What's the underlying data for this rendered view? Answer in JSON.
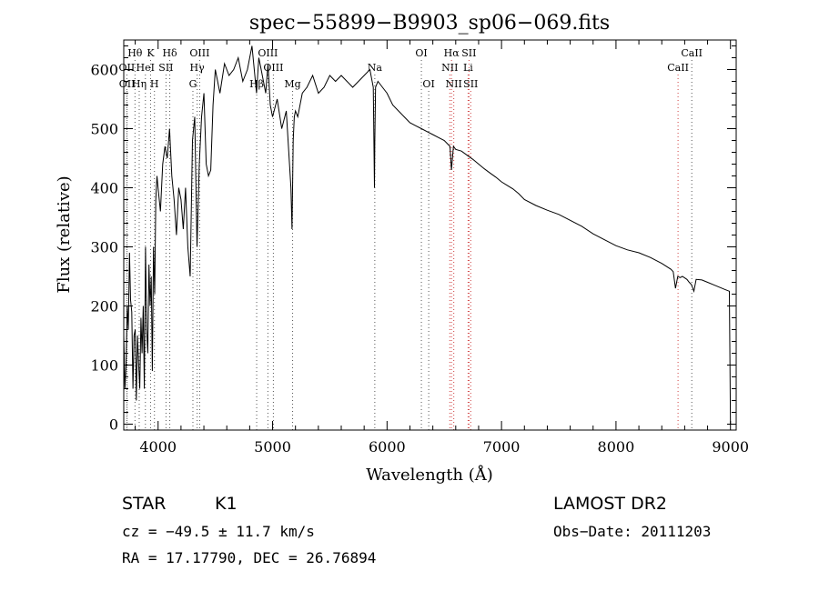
{
  "chart_data": {
    "type": "line",
    "title": "spec−55899−B9903_sp06−069.fits",
    "xlabel": "Wavelength (Å)",
    "ylabel": "Flux (relative)",
    "xlim": [
      3700,
      9050
    ],
    "ylim": [
      -10,
      650
    ],
    "xticks": [
      4000,
      5000,
      6000,
      7000,
      8000,
      9000
    ],
    "yticks": [
      0,
      100,
      200,
      300,
      400,
      500,
      600
    ],
    "grid": false,
    "series": [
      {
        "x": [
          3700,
          3710,
          3720,
          3730,
          3740,
          3750,
          3760,
          3770,
          3780,
          3790,
          3800,
          3810,
          3820,
          3830,
          3840,
          3850,
          3860,
          3870,
          3880,
          3890,
          3900,
          3910,
          3920,
          3930,
          3940,
          3950,
          3960,
          3970,
          3980,
          3990,
          4000,
          4020,
          4040,
          4060,
          4080,
          4100,
          4120,
          4140,
          4160,
          4180,
          4200,
          4220,
          4240,
          4260,
          4280,
          4300,
          4320,
          4340,
          4360,
          4380,
          4400,
          4420,
          4440,
          4460,
          4480,
          4500,
          4540,
          4580,
          4620,
          4660,
          4700,
          4740,
          4780,
          4820,
          4840,
          4860,
          4880,
          4900,
          4920,
          4940,
          4960,
          4980,
          5000,
          5040,
          5080,
          5120,
          5160,
          5170,
          5180,
          5190,
          5200,
          5220,
          5260,
          5300,
          5350,
          5400,
          5450,
          5500,
          5550,
          5600,
          5650,
          5700,
          5750,
          5800,
          5850,
          5880,
          5890,
          5893,
          5900,
          5920,
          5960,
          6000,
          6050,
          6100,
          6150,
          6200,
          6250,
          6300,
          6350,
          6400,
          6450,
          6500,
          6550,
          6563,
          6580,
          6600,
          6650,
          6700,
          6750,
          6800,
          6850,
          6900,
          6950,
          7000,
          7050,
          7100,
          7150,
          7200,
          7300,
          7400,
          7500,
          7600,
          7700,
          7800,
          7900,
          8000,
          8100,
          8200,
          8300,
          8400,
          8480,
          8500,
          8520,
          8540,
          8560,
          8580,
          8620,
          8640,
          8660,
          8680,
          8700,
          8750,
          8800,
          8850,
          8900,
          8950,
          8990,
          9000,
          9005
        ],
        "y": [
          150,
          60,
          100,
          200,
          160,
          290,
          210,
          190,
          60,
          150,
          160,
          40,
          150,
          100,
          60,
          180,
          120,
          200,
          60,
          300,
          160,
          120,
          270,
          200,
          250,
          90,
          300,
          220,
          380,
          420,
          400,
          360,
          440,
          470,
          450,
          500,
          420,
          380,
          320,
          400,
          380,
          330,
          400,
          300,
          250,
          480,
          520,
          300,
          440,
          520,
          560,
          440,
          420,
          430,
          540,
          600,
          560,
          610,
          590,
          600,
          620,
          580,
          600,
          640,
          600,
          560,
          620,
          600,
          580,
          560,
          610,
          540,
          520,
          550,
          500,
          530,
          400,
          330,
          480,
          520,
          530,
          520,
          560,
          570,
          590,
          560,
          570,
          590,
          580,
          590,
          580,
          570,
          580,
          590,
          600,
          570,
          400,
          480,
          570,
          580,
          570,
          560,
          540,
          530,
          520,
          510,
          505,
          500,
          495,
          490,
          485,
          480,
          470,
          430,
          470,
          465,
          462,
          455,
          448,
          440,
          432,
          425,
          418,
          410,
          404,
          398,
          390,
          380,
          370,
          362,
          355,
          345,
          335,
          322,
          312,
          302,
          295,
          290,
          282,
          272,
          262,
          258,
          230,
          250,
          248,
          250,
          245,
          240,
          236,
          225,
          245,
          244,
          240,
          236,
          232,
          228,
          225,
          0,
          0
        ]
      }
    ],
    "spectral_lines": [
      {
        "label": "Hθ",
        "x": 3798,
        "row": 0,
        "color": "#555555"
      },
      {
        "label": "K",
        "x": 3934,
        "row": 0,
        "color": "#555555"
      },
      {
        "label": "Hδ",
        "x": 4102,
        "row": 0,
        "color": "#555555"
      },
      {
        "label": "OIII",
        "x": 4363,
        "row": 0,
        "color": "#555555"
      },
      {
        "label": "OIII",
        "x": 4959,
        "row": 0,
        "color": "#555555"
      },
      {
        "label": "OI",
        "x": 6300,
        "row": 0,
        "color": "#555555"
      },
      {
        "label": "Hα",
        "x": 6563,
        "row": 0,
        "color": "#d04040"
      },
      {
        "label": "SII",
        "x": 6716,
        "row": 0,
        "color": "#d04040"
      },
      {
        "label": "CaII",
        "x": 8662,
        "row": 0,
        "color": "#555555"
      },
      {
        "label": "OII",
        "x": 3727,
        "row": 1,
        "color": "#555555"
      },
      {
        "label": "HeI",
        "x": 3889,
        "row": 1,
        "color": "#555555"
      },
      {
        "label": "SII",
        "x": 4069,
        "row": 1,
        "color": "#555555"
      },
      {
        "label": "Hγ",
        "x": 4341,
        "row": 1,
        "color": "#555555"
      },
      {
        "label": "OIII",
        "x": 5007,
        "row": 1,
        "color": "#555555"
      },
      {
        "label": "Na",
        "x": 5893,
        "row": 1,
        "color": "#555555"
      },
      {
        "label": "NII",
        "x": 6548,
        "row": 1,
        "color": "#d04040"
      },
      {
        "label": "Li",
        "x": 6708,
        "row": 1,
        "color": "#d04040"
      },
      {
        "label": "CaII",
        "x": 8542,
        "row": 1,
        "color": "#d04040"
      },
      {
        "label": "OII",
        "x": 3729,
        "row": 2,
        "color": "#555555"
      },
      {
        "label": "Hη",
        "x": 3835,
        "row": 2,
        "color": "#555555"
      },
      {
        "label": "H",
        "x": 3968,
        "row": 2,
        "color": "#555555"
      },
      {
        "label": "G",
        "x": 4304,
        "row": 2,
        "color": "#555555"
      },
      {
        "label": "Hβ",
        "x": 4861,
        "row": 2,
        "color": "#555555"
      },
      {
        "label": "Mg",
        "x": 5175,
        "row": 2,
        "color": "#555555"
      },
      {
        "label": "OI",
        "x": 6364,
        "row": 2,
        "color": "#555555"
      },
      {
        "label": "NII",
        "x": 6583,
        "row": 2,
        "color": "#d04040"
      },
      {
        "label": "SII",
        "x": 6731,
        "row": 2,
        "color": "#d04040"
      }
    ]
  },
  "info": {
    "object_class": "STAR",
    "subclass": "K1",
    "survey": "LAMOST DR2",
    "cz": "cz = −49.5 ± 11.7 km/s",
    "obs_date": "Obs−Date: 20111203",
    "coords": "RA =  17.17790, DEC =  26.76894"
  }
}
